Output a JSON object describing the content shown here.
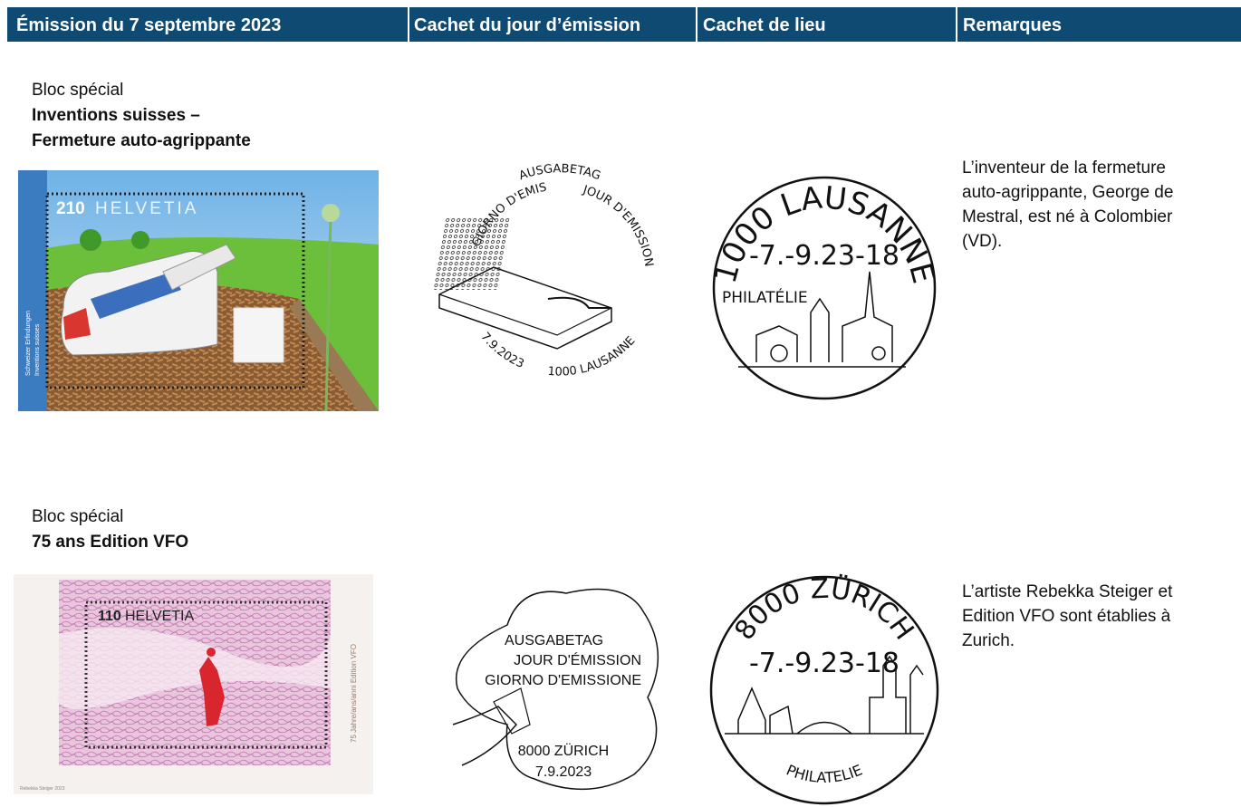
{
  "header": {
    "columns": [
      "Émission du 7 septembre 2023",
      "Cachet du jour d’émission",
      "Cachet de lieu",
      "Remarques"
    ]
  },
  "rows": [
    {
      "label": "Bloc spécial",
      "title_lines": [
        "Inventions suisses –",
        "Fermeture auto-agrippante"
      ],
      "stamp": {
        "value": "210",
        "country": "HELVETIA",
        "side_texts": [
          "Schweizer Erfindungen",
          "Inventions suisses"
        ]
      },
      "first_day_cancel": {
        "texts": [
          "AUSGABETAG",
          "GIORNO D'EMISSIONE",
          "JOUR D'EMISSION",
          "7.9.2023",
          "1000 LAUSANNE"
        ]
      },
      "place_cancel": {
        "place": "1000 LAUSANNE",
        "date": "-7.-9.23-18",
        "caption": "PHILATÉLIE"
      },
      "remarks_lines": [
        "L’inventeur de la fermeture",
        "auto-agrippante, George de",
        "Mestral, est né à Colombier",
        "(VD)."
      ]
    },
    {
      "label": "Bloc spécial",
      "title_lines": [
        "75 ans Edition VFO"
      ],
      "stamp": {
        "value": "110",
        "country": "HELVETIA",
        "side_texts": [
          "75 Jahre/ans/anni Edition VFO",
          "Rebekka Steiger 2023"
        ]
      },
      "first_day_cancel": {
        "texts": [
          "AUSGABETAG",
          "JOUR D'ÉMISSION",
          "GIORNO D'EMISSIONE",
          "8000 ZÜRICH",
          "7.9.2023"
        ]
      },
      "place_cancel": {
        "place": "8000 ZÜRICH",
        "date": "-7.-9.23-18",
        "caption": "PHILATELIE"
      },
      "remarks_lines": [
        "L’artiste Rebekka Steiger et",
        "Edition VFO sont établies à",
        "Zurich."
      ]
    }
  ]
}
